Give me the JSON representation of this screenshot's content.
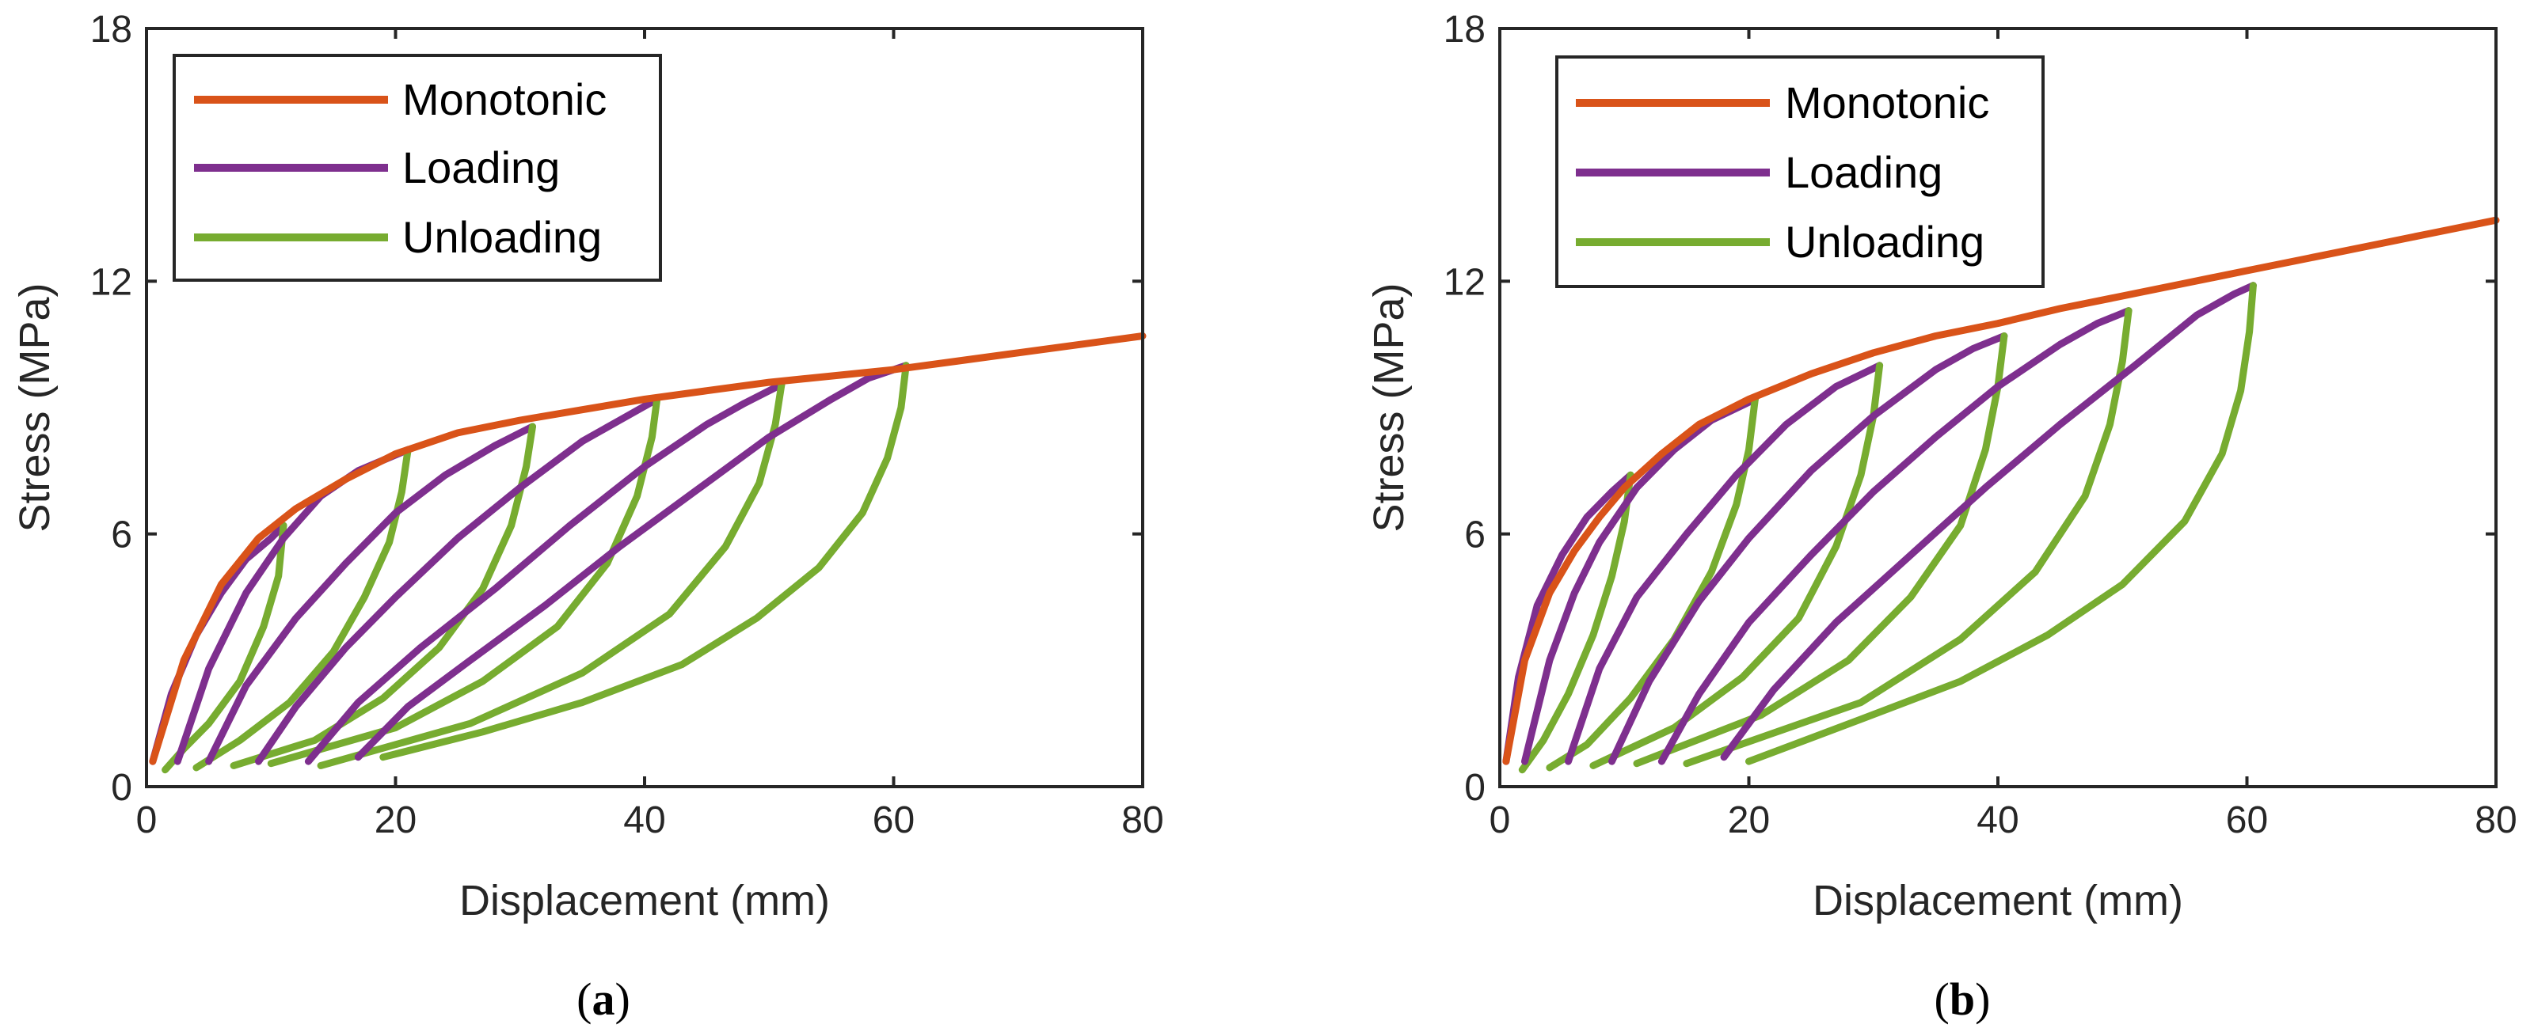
{
  "colors": {
    "monotonic": "#d95319",
    "loading": "#7e2f8e",
    "unloading": "#77ac30",
    "axis": "#262626"
  },
  "chart_data": [
    {
      "type": "line",
      "panel_label": "a",
      "xlabel": "Displacement (mm)",
      "ylabel": "Stress (MPa)",
      "xlim": [
        0,
        80
      ],
      "ylim": [
        0,
        18
      ],
      "xticks": [
        0,
        20,
        40,
        60,
        80
      ],
      "yticks": [
        0,
        6,
        12,
        18
      ],
      "legend": {
        "position": "top-left",
        "entries": [
          "Monotonic",
          "Loading",
          "Unloading"
        ]
      },
      "series": [
        {
          "name": "Monotonic",
          "kind": "monotonic",
          "x": [
            0.5,
            3,
            6,
            9,
            12,
            16,
            20,
            25,
            30,
            35,
            40,
            45,
            50,
            55,
            60,
            65,
            70,
            75,
            80
          ],
          "y": [
            0.6,
            3.0,
            4.8,
            5.9,
            6.6,
            7.3,
            7.9,
            8.4,
            8.7,
            8.95,
            9.2,
            9.4,
            9.6,
            9.75,
            9.9,
            10.1,
            10.3,
            10.5,
            10.7
          ]
        },
        {
          "name": "Loading cycle 1",
          "kind": "loading",
          "x": [
            0.5,
            2,
            4,
            6,
            8,
            10,
            11
          ],
          "y": [
            0.6,
            2.2,
            3.6,
            4.6,
            5.4,
            5.9,
            6.2
          ]
        },
        {
          "name": "Unloading cycle 1",
          "kind": "unloading",
          "x": [
            11,
            10.6,
            9.4,
            7.5,
            5,
            3,
            1.5
          ],
          "y": [
            6.2,
            5.0,
            3.8,
            2.5,
            1.5,
            0.9,
            0.4
          ]
        },
        {
          "name": "Loading cycle 2",
          "kind": "loading",
          "x": [
            2.5,
            5,
            8,
            11,
            14,
            17,
            21
          ],
          "y": [
            0.6,
            2.8,
            4.6,
            5.9,
            6.9,
            7.5,
            8.0
          ]
        },
        {
          "name": "Unloading cycle 2",
          "kind": "unloading",
          "x": [
            21,
            20.5,
            19.5,
            17.5,
            15,
            11.5,
            7.5,
            4
          ],
          "y": [
            8.0,
            7.0,
            5.8,
            4.5,
            3.2,
            2.0,
            1.1,
            0.45
          ]
        },
        {
          "name": "Loading cycle 3",
          "kind": "loading",
          "x": [
            5,
            8,
            12,
            16,
            20,
            24,
            28,
            31
          ],
          "y": [
            0.6,
            2.4,
            4.0,
            5.3,
            6.5,
            7.4,
            8.1,
            8.55
          ]
        },
        {
          "name": "Unloading cycle 3",
          "kind": "unloading",
          "x": [
            31,
            30.5,
            29.3,
            27,
            23.5,
            19,
            13.5,
            7
          ],
          "y": [
            8.55,
            7.6,
            6.2,
            4.7,
            3.3,
            2.1,
            1.1,
            0.5
          ]
        },
        {
          "name": "Loading cycle 4",
          "kind": "loading",
          "x": [
            9,
            12,
            16,
            20,
            25,
            30,
            35,
            38,
            41
          ],
          "y": [
            0.6,
            1.9,
            3.3,
            4.5,
            5.9,
            7.1,
            8.2,
            8.7,
            9.2
          ]
        },
        {
          "name": "Unloading cycle 4",
          "kind": "unloading",
          "x": [
            41,
            40.6,
            39.4,
            37,
            33,
            27,
            20,
            10
          ],
          "y": [
            9.2,
            8.3,
            6.9,
            5.3,
            3.8,
            2.5,
            1.4,
            0.55
          ]
        },
        {
          "name": "Loading cycle 5",
          "kind": "loading",
          "x": [
            13,
            17,
            22,
            28,
            34,
            40,
            45,
            48,
            51
          ],
          "y": [
            0.6,
            2.0,
            3.3,
            4.7,
            6.2,
            7.6,
            8.6,
            9.1,
            9.55
          ]
        },
        {
          "name": "Unloading cycle 5",
          "kind": "unloading",
          "x": [
            51,
            50.5,
            49.2,
            46.5,
            42,
            35,
            26,
            14
          ],
          "y": [
            9.55,
            8.6,
            7.2,
            5.7,
            4.1,
            2.7,
            1.5,
            0.5
          ]
        },
        {
          "name": "Loading cycle 6",
          "kind": "loading",
          "x": [
            17,
            21,
            26,
            32,
            38,
            44,
            50,
            55,
            58,
            61
          ],
          "y": [
            0.7,
            1.9,
            3.0,
            4.3,
            5.7,
            7.0,
            8.3,
            9.2,
            9.7,
            10.0
          ]
        },
        {
          "name": "Unloading cycle 6",
          "kind": "unloading",
          "x": [
            61,
            60.6,
            59.5,
            57.5,
            54,
            49,
            43,
            35,
            27,
            19
          ],
          "y": [
            10.0,
            9.0,
            7.8,
            6.5,
            5.2,
            4.0,
            2.9,
            2.0,
            1.3,
            0.7
          ]
        }
      ]
    },
    {
      "type": "line",
      "panel_label": "b",
      "xlabel": "Displacement (mm)",
      "ylabel": "Stress (MPa)",
      "xlim": [
        0,
        80
      ],
      "ylim": [
        0,
        18
      ],
      "xticks": [
        0,
        20,
        40,
        60,
        80
      ],
      "yticks": [
        0,
        6,
        12,
        18
      ],
      "legend": {
        "position": "top-left",
        "entries": [
          "Monotonic",
          "Loading",
          "Unloading"
        ]
      },
      "series": [
        {
          "name": "Monotonic",
          "kind": "monotonic",
          "x": [
            0.5,
            2,
            4,
            6,
            8,
            10,
            13,
            16,
            20,
            25,
            30,
            35,
            40,
            45,
            50,
            55,
            60,
            65,
            70,
            75,
            80
          ],
          "y": [
            0.6,
            3.0,
            4.6,
            5.6,
            6.4,
            7.1,
            7.9,
            8.6,
            9.2,
            9.8,
            10.3,
            10.7,
            11.0,
            11.35,
            11.65,
            11.95,
            12.25,
            12.55,
            12.85,
            13.15,
            13.45
          ]
        },
        {
          "name": "Loading cycle 1",
          "kind": "loading",
          "x": [
            0.5,
            1.5,
            3,
            5,
            7,
            9,
            10.5
          ],
          "y": [
            0.6,
            2.6,
            4.3,
            5.5,
            6.4,
            7.0,
            7.4
          ]
        },
        {
          "name": "Unloading cycle 1",
          "kind": "unloading",
          "x": [
            10.5,
            10,
            9,
            7.5,
            5.5,
            3.5,
            1.8
          ],
          "y": [
            7.4,
            6.3,
            5.0,
            3.6,
            2.2,
            1.1,
            0.4
          ]
        },
        {
          "name": "Loading cycle 2",
          "kind": "loading",
          "x": [
            2,
            4,
            6,
            8,
            11,
            14,
            17,
            20.5
          ],
          "y": [
            0.6,
            3.0,
            4.6,
            5.8,
            7.1,
            8.0,
            8.7,
            9.2
          ]
        },
        {
          "name": "Unloading cycle 2",
          "kind": "unloading",
          "x": [
            20.5,
            20,
            19,
            17,
            14,
            10.5,
            7,
            4
          ],
          "y": [
            9.2,
            8.0,
            6.7,
            5.1,
            3.5,
            2.1,
            1.0,
            0.45
          ]
        },
        {
          "name": "Loading cycle 3",
          "kind": "loading",
          "x": [
            5.5,
            8,
            11,
            15,
            19,
            23,
            27,
            30.5
          ],
          "y": [
            0.6,
            2.8,
            4.5,
            6.0,
            7.4,
            8.6,
            9.5,
            10.0
          ]
        },
        {
          "name": "Unloading cycle 3",
          "kind": "unloading",
          "x": [
            30.5,
            30,
            29,
            27,
            24,
            19.5,
            14,
            7.5
          ],
          "y": [
            10.0,
            8.8,
            7.4,
            5.7,
            4.0,
            2.6,
            1.4,
            0.5
          ]
        },
        {
          "name": "Loading cycle 4",
          "kind": "loading",
          "x": [
            9,
            12,
            16,
            20,
            25,
            30,
            35,
            38,
            40.5
          ],
          "y": [
            0.6,
            2.5,
            4.4,
            5.9,
            7.5,
            8.8,
            9.9,
            10.4,
            10.7
          ]
        },
        {
          "name": "Unloading cycle 4",
          "kind": "unloading",
          "x": [
            40.5,
            40,
            39,
            37,
            33,
            28,
            21,
            11
          ],
          "y": [
            10.7,
            9.5,
            8.0,
            6.2,
            4.5,
            3.0,
            1.7,
            0.55
          ]
        },
        {
          "name": "Loading cycle 5",
          "kind": "loading",
          "x": [
            13,
            16,
            20,
            25,
            30,
            35,
            40,
            45,
            48,
            50.5
          ],
          "y": [
            0.6,
            2.2,
            3.9,
            5.5,
            7.0,
            8.3,
            9.5,
            10.5,
            11.0,
            11.3
          ]
        },
        {
          "name": "Unloading cycle 5",
          "kind": "unloading",
          "x": [
            50.5,
            50,
            49,
            47,
            43,
            37,
            29,
            15
          ],
          "y": [
            11.3,
            10.1,
            8.6,
            6.9,
            5.1,
            3.5,
            2.0,
            0.55
          ]
        },
        {
          "name": "Loading cycle 6",
          "kind": "loading",
          "x": [
            18,
            22,
            27,
            33,
            39,
            45,
            51,
            56,
            59,
            60.5
          ],
          "y": [
            0.7,
            2.3,
            3.9,
            5.5,
            7.1,
            8.6,
            10.0,
            11.2,
            11.7,
            11.9
          ]
        },
        {
          "name": "Unloading cycle 6",
          "kind": "unloading",
          "x": [
            60.5,
            60.2,
            59.5,
            58,
            55,
            50,
            44,
            37,
            29,
            20
          ],
          "y": [
            11.9,
            10.8,
            9.4,
            7.9,
            6.3,
            4.8,
            3.6,
            2.5,
            1.6,
            0.6
          ]
        }
      ]
    }
  ]
}
